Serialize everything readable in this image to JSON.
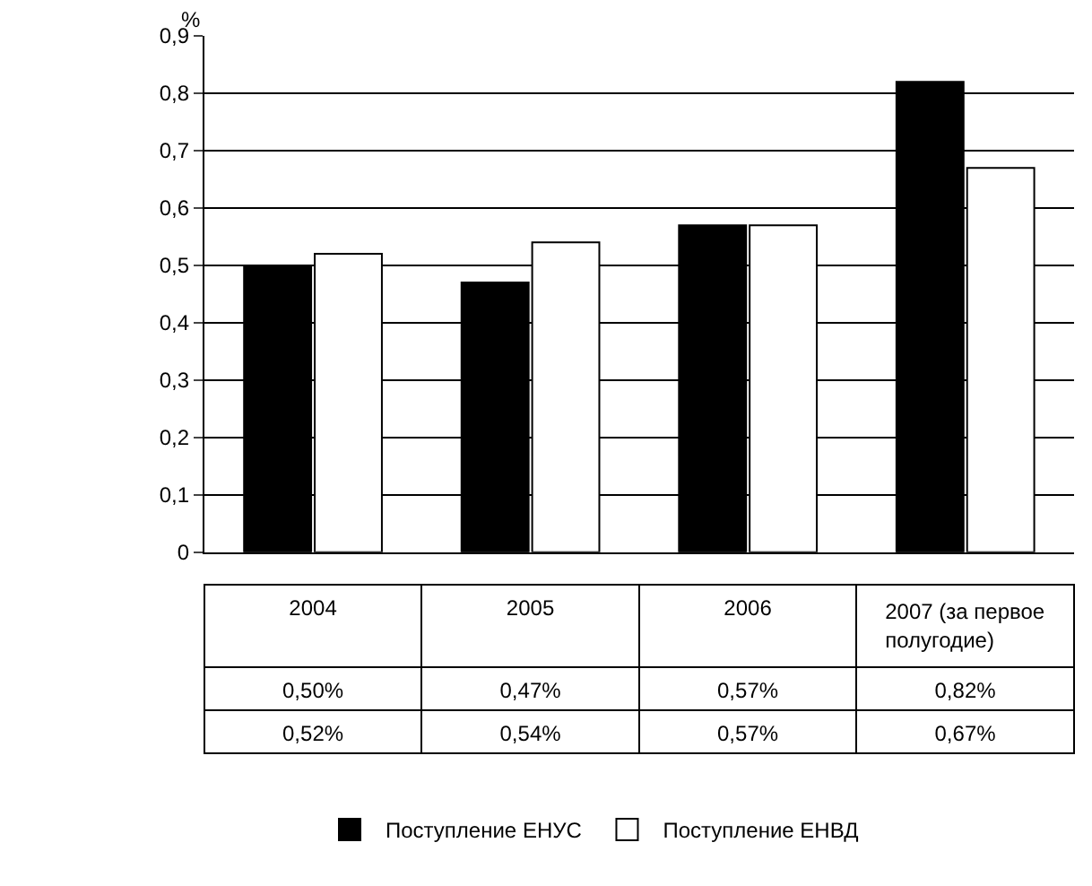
{
  "chart_data": {
    "type": "bar",
    "ylabel": "%",
    "categories": [
      "2004",
      "2005",
      "2006",
      "2007 (за первое полугодие)"
    ],
    "series": [
      {
        "name": "Поступление ЕНУС",
        "color": "#000000",
        "values": [
          0.5,
          0.47,
          0.57,
          0.82
        ],
        "value_labels": [
          "0,50%",
          "0,47%",
          "0,57%",
          "0,82%"
        ]
      },
      {
        "name": "Поступление ЕНВД",
        "color": "#ffffff",
        "values": [
          0.52,
          0.54,
          0.57,
          0.67
        ],
        "value_labels": [
          "0,52%",
          "0,54%",
          "0,57%",
          "0,67%"
        ]
      }
    ],
    "ylim": [
      0,
      0.9
    ],
    "yticks": [
      0,
      {
        "value": 0.1,
        "label": "0,1"
      },
      {
        "value": 0.2,
        "label": "0,2"
      },
      {
        "value": 0.3,
        "label": "0,3"
      },
      {
        "value": 0.4,
        "label": "0,4"
      },
      {
        "value": 0.5,
        "label": "0,5"
      },
      {
        "value": 0.6,
        "label": "0,6"
      },
      {
        "value": 0.7,
        "label": "0,7"
      },
      {
        "value": 0.8,
        "label": "0,8"
      },
      {
        "value": 0.9,
        "label": "0,9"
      }
    ],
    "grid": "y",
    "legend": "bottom"
  }
}
